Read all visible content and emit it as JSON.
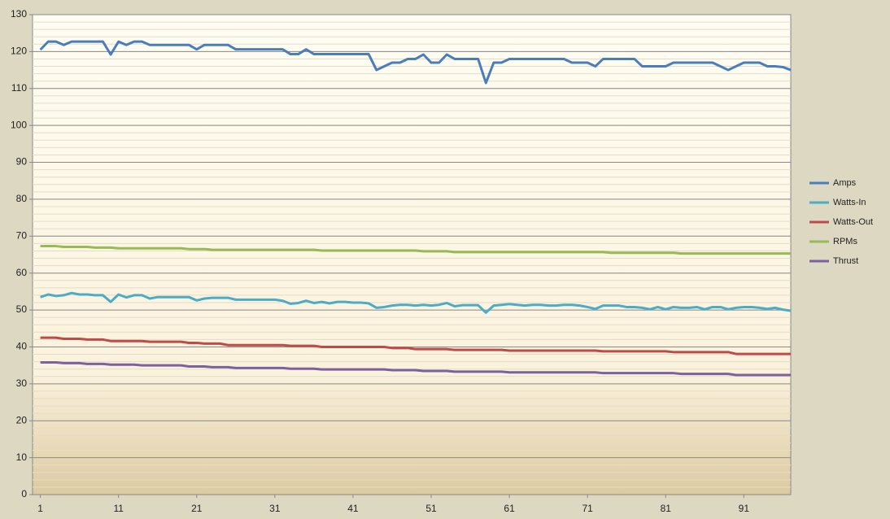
{
  "chart_data": {
    "type": "line",
    "x": [
      1,
      2,
      3,
      4,
      5,
      6,
      7,
      8,
      9,
      10,
      11,
      12,
      13,
      14,
      15,
      16,
      17,
      18,
      19,
      20,
      21,
      22,
      23,
      24,
      25,
      26,
      27,
      28,
      29,
      30,
      31,
      32,
      33,
      34,
      35,
      36,
      37,
      38,
      39,
      40,
      41,
      42,
      43,
      44,
      45,
      46,
      47,
      48,
      49,
      50,
      51,
      52,
      53,
      54,
      55,
      56,
      57,
      58,
      59,
      60,
      61,
      62,
      63,
      64,
      65,
      66,
      67,
      68,
      69,
      70,
      71,
      72,
      73,
      74,
      75,
      76,
      77,
      78,
      79,
      80,
      81,
      82,
      83,
      84,
      85,
      86,
      87,
      88,
      89,
      90,
      91,
      92,
      93,
      94,
      95,
      96,
      97
    ],
    "xlim": [
      0,
      97
    ],
    "xticks": [
      1,
      11,
      21,
      31,
      41,
      51,
      61,
      71,
      81,
      91
    ],
    "ylim": [
      0,
      130
    ],
    "yticks": [
      0,
      10,
      20,
      30,
      40,
      50,
      60,
      70,
      80,
      90,
      100,
      110,
      120,
      130
    ],
    "grid": true,
    "minor_grid": true,
    "legend": "right",
    "series": [
      {
        "name": "Amps",
        "color": "#4a7ebb",
        "values": [
          120.5,
          122.7,
          122.7,
          121.8,
          122.7,
          122.7,
          122.7,
          122.7,
          122.7,
          119.2,
          122.7,
          121.8,
          122.7,
          122.7,
          121.8,
          121.8,
          121.8,
          121.8,
          121.8,
          121.8,
          120.6,
          121.8,
          121.8,
          121.8,
          121.8,
          120.6,
          120.6,
          120.6,
          120.6,
          120.6,
          120.6,
          120.6,
          119.3,
          119.3,
          120.6,
          119.3,
          119.3,
          119.3,
          119.3,
          119.3,
          119.3,
          119.3,
          119.3,
          115,
          116,
          117,
          117,
          118,
          118,
          119.2,
          117,
          117,
          119.2,
          118,
          118,
          118,
          118,
          111.5,
          117,
          117,
          118,
          118,
          118,
          118,
          118,
          118,
          118,
          118,
          117,
          117,
          117,
          116,
          118,
          118,
          118,
          118,
          118,
          116,
          116,
          116,
          116,
          117,
          117,
          117,
          117,
          117,
          117,
          116,
          115,
          116,
          117,
          117,
          117,
          116,
          116,
          115.8,
          115
        ]
      },
      {
        "name": "Watts-In",
        "color": "#4bacc6",
        "values": [
          53.5,
          54.2,
          53.8,
          54,
          54.6,
          54.2,
          54.2,
          54,
          54,
          52.2,
          54.2,
          53.4,
          54,
          54,
          53.1,
          53.5,
          53.5,
          53.5,
          53.5,
          53.5,
          52.6,
          53.1,
          53.3,
          53.3,
          53.3,
          52.8,
          52.8,
          52.8,
          52.8,
          52.8,
          52.8,
          52.5,
          51.7,
          51.9,
          52.5,
          51.9,
          52.2,
          51.8,
          52.2,
          52.2,
          52,
          52,
          51.8,
          50.6,
          50.8,
          51.2,
          51.4,
          51.4,
          51.2,
          51.4,
          51.2,
          51.4,
          51.9,
          51,
          51.3,
          51.3,
          51.3,
          49.3,
          51.2,
          51.4,
          51.6,
          51.4,
          51.2,
          51.4,
          51.4,
          51.2,
          51.2,
          51.4,
          51.4,
          51.2,
          50.8,
          50.3,
          51.2,
          51.2,
          51.2,
          50.8,
          50.8,
          50.6,
          50.2,
          50.8,
          50.2,
          50.8,
          50.6,
          50.6,
          50.8,
          50.2,
          50.8,
          50.8,
          50.2,
          50.6,
          50.8,
          50.8,
          50.6,
          50.3,
          50.6,
          50.1,
          49.8
        ]
      },
      {
        "name": "Watts-Out",
        "color": "#be4b48",
        "values": [
          42.5,
          42.5,
          42.5,
          42.2,
          42.2,
          42.2,
          42,
          42,
          42,
          41.6,
          41.6,
          41.6,
          41.6,
          41.6,
          41.4,
          41.4,
          41.4,
          41.4,
          41.4,
          41.1,
          41.1,
          40.9,
          40.9,
          40.9,
          40.5,
          40.5,
          40.5,
          40.5,
          40.5,
          40.5,
          40.5,
          40.5,
          40.3,
          40.3,
          40.3,
          40.3,
          40,
          40,
          40,
          40,
          40,
          40,
          40,
          40,
          40,
          39.7,
          39.7,
          39.7,
          39.4,
          39.4,
          39.4,
          39.4,
          39.4,
          39.2,
          39.2,
          39.2,
          39.2,
          39.2,
          39.2,
          39.2,
          39,
          39,
          39,
          39,
          39,
          39,
          39,
          39,
          39,
          39,
          39,
          39,
          38.8,
          38.8,
          38.8,
          38.8,
          38.8,
          38.8,
          38.8,
          38.8,
          38.8,
          38.6,
          38.6,
          38.6,
          38.6,
          38.6,
          38.6,
          38.6,
          38.6,
          38.1,
          38.1,
          38.1,
          38.1,
          38.1,
          38.1,
          38.1,
          38.1
        ]
      },
      {
        "name": "RPMs",
        "color": "#98b954",
        "values": [
          67.3,
          67.3,
          67.3,
          67.1,
          67.1,
          67.1,
          67.1,
          66.9,
          66.9,
          66.9,
          66.7,
          66.7,
          66.7,
          66.7,
          66.7,
          66.7,
          66.7,
          66.7,
          66.7,
          66.5,
          66.5,
          66.5,
          66.3,
          66.3,
          66.3,
          66.3,
          66.3,
          66.3,
          66.3,
          66.3,
          66.3,
          66.3,
          66.3,
          66.3,
          66.3,
          66.3,
          66.1,
          66.1,
          66.1,
          66.1,
          66.1,
          66.1,
          66.1,
          66.1,
          66.1,
          66.1,
          66.1,
          66.1,
          66.1,
          65.9,
          65.9,
          65.9,
          65.9,
          65.7,
          65.7,
          65.7,
          65.7,
          65.7,
          65.7,
          65.7,
          65.7,
          65.7,
          65.7,
          65.7,
          65.7,
          65.7,
          65.7,
          65.7,
          65.7,
          65.7,
          65.7,
          65.7,
          65.7,
          65.5,
          65.5,
          65.5,
          65.5,
          65.5,
          65.5,
          65.5,
          65.5,
          65.5,
          65.3,
          65.3,
          65.3,
          65.3,
          65.3,
          65.3,
          65.3,
          65.3,
          65.3,
          65.3,
          65.3,
          65.3,
          65.3,
          65.3,
          65.3
        ]
      },
      {
        "name": "Thrust",
        "color": "#7d60a0",
        "values": [
          35.8,
          35.8,
          35.8,
          35.6,
          35.6,
          35.6,
          35.4,
          35.4,
          35.4,
          35.2,
          35.2,
          35.2,
          35.2,
          35,
          35,
          35,
          35,
          35,
          35,
          34.7,
          34.7,
          34.7,
          34.5,
          34.5,
          34.5,
          34.3,
          34.3,
          34.3,
          34.3,
          34.3,
          34.3,
          34.3,
          34.1,
          34.1,
          34.1,
          34.1,
          33.9,
          33.9,
          33.9,
          33.9,
          33.9,
          33.9,
          33.9,
          33.9,
          33.9,
          33.7,
          33.7,
          33.7,
          33.7,
          33.5,
          33.5,
          33.5,
          33.5,
          33.3,
          33.3,
          33.3,
          33.3,
          33.3,
          33.3,
          33.3,
          33.1,
          33.1,
          33.1,
          33.1,
          33.1,
          33.1,
          33.1,
          33.1,
          33.1,
          33.1,
          33.1,
          33.1,
          32.9,
          32.9,
          32.9,
          32.9,
          32.9,
          32.9,
          32.9,
          32.9,
          32.9,
          32.9,
          32.7,
          32.7,
          32.7,
          32.7,
          32.7,
          32.7,
          32.7,
          32.4,
          32.4,
          32.4,
          32.4,
          32.4,
          32.4,
          32.4,
          32.4
        ]
      }
    ]
  }
}
